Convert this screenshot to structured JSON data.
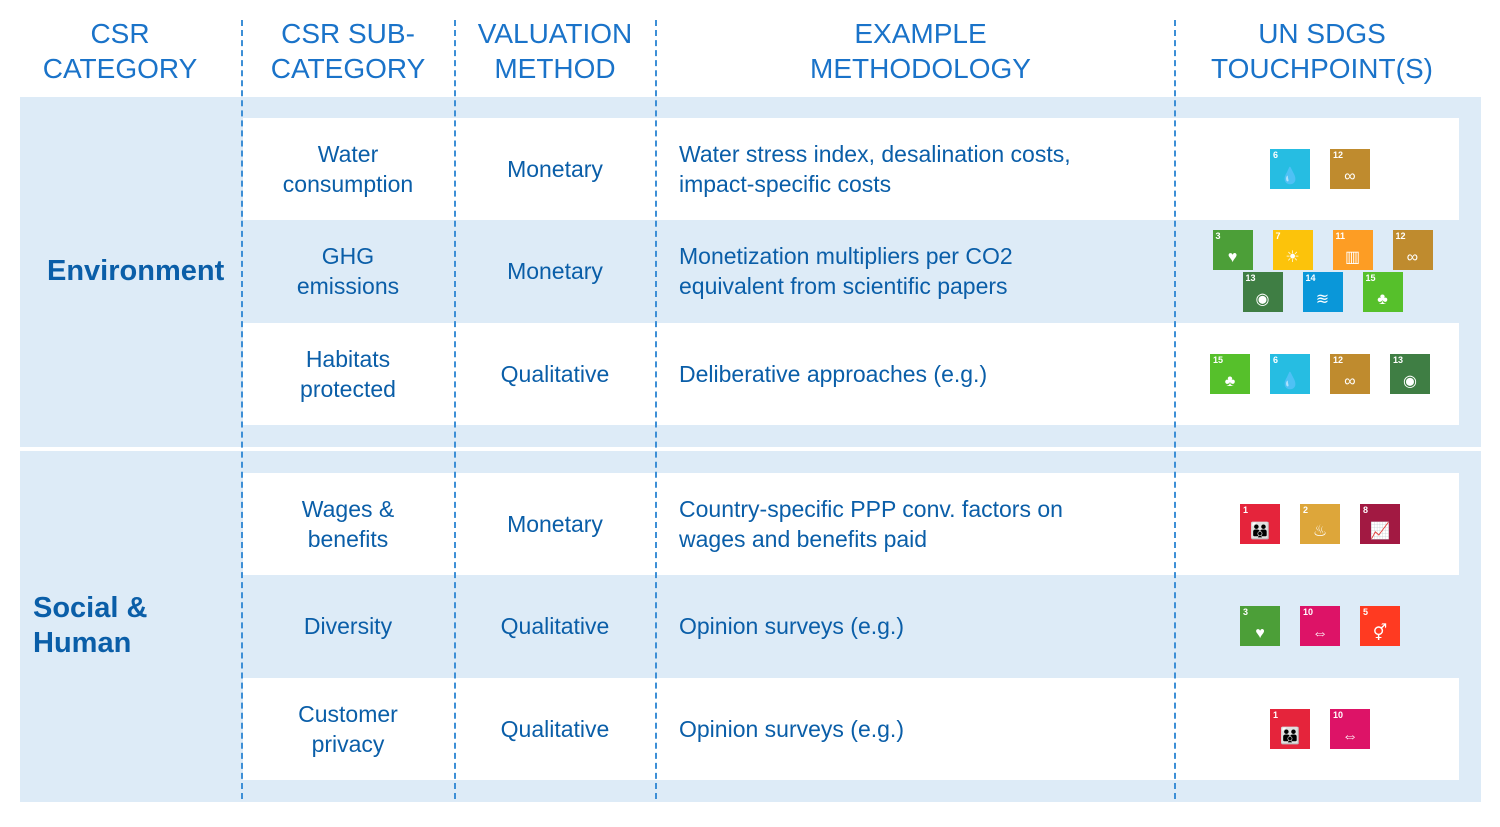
{
  "headers": [
    {
      "line1": "CSR",
      "line2": "CATEGORY"
    },
    {
      "line1": "CSR SUB-",
      "line2": "CATEGORY"
    },
    {
      "line1": "VALUATION",
      "line2": "METHOD"
    },
    {
      "line1": "EXAMPLE",
      "line2": "METHODOLOGY"
    },
    {
      "line1": "UN SDGS",
      "line2": "TOUCHPOINT(S)"
    }
  ],
  "categories": [
    {
      "line1": "Environment",
      "line2": ""
    },
    {
      "line1": "Social &",
      "line2": "Human"
    }
  ],
  "rows": [
    {
      "sub1": "Water",
      "sub2": "consumption",
      "method": "Monetary",
      "meth1": "Water stress index, desalination costs,",
      "meth2": "impact-specific costs",
      "sdgs": [
        6,
        12
      ]
    },
    {
      "sub1": "GHG",
      "sub2": "emissions",
      "method": "Monetary",
      "meth1": "Monetization multipliers per CO2",
      "meth2": "equivalent from scientific papers",
      "sdgs": [
        3,
        7,
        11,
        12,
        13,
        14,
        15
      ]
    },
    {
      "sub1": "Habitats",
      "sub2": "protected",
      "method": "Qualitative",
      "meth1": "Deliberative approaches (e.g.)",
      "meth2": "",
      "sdgs": [
        15,
        6,
        12,
        13
      ]
    },
    {
      "sub1": "Wages &",
      "sub2": "benefits",
      "method": "Monetary",
      "meth1": "Country-specific PPP conv. factors on",
      "meth2": "wages and benefits paid",
      "sdgs": [
        1,
        2,
        8
      ]
    },
    {
      "sub1": "Diversity",
      "sub2": "",
      "method": "Qualitative",
      "meth1": "Opinion surveys (e.g.)",
      "meth2": "",
      "sdgs": [
        3,
        10,
        5
      ]
    },
    {
      "sub1": "Customer",
      "sub2": "privacy",
      "method": "Qualitative",
      "meth1": "Opinion surveys (e.g.)",
      "meth2": "",
      "sdgs": [
        1,
        10
      ]
    }
  ],
  "sdg_colors": {
    "1": "#e5243b",
    "2": "#dda63a",
    "3": "#4c9f38",
    "5": "#ff3a21",
    "6": "#26bde2",
    "7": "#fcc30b",
    "8": "#a21942",
    "10": "#dd1367",
    "11": "#fd9d24",
    "12": "#bf8b2e",
    "13": "#3f7e44",
    "14": "#0a97d9",
    "15": "#56c02b"
  },
  "sdg_icons": {
    "1": "family-icon",
    "2": "bowl-icon",
    "3": "heartbeat-icon",
    "5": "gender-icon",
    "6": "water-drop-icon",
    "7": "sun-icon",
    "8": "growth-chart-icon",
    "10": "equality-icon",
    "11": "city-icon",
    "12": "infinity-icon",
    "13": "eye-earth-icon",
    "14": "fish-icon",
    "15": "tree-icon"
  },
  "sdg_glyphs": {
    "1": "👪",
    "2": "♨",
    "3": "♥",
    "5": "⚥",
    "6": "💧",
    "7": "☀",
    "8": "📈",
    "10": "⇔",
    "11": "▥",
    "12": "∞",
    "13": "◉",
    "14": "≋",
    "15": "♣"
  }
}
